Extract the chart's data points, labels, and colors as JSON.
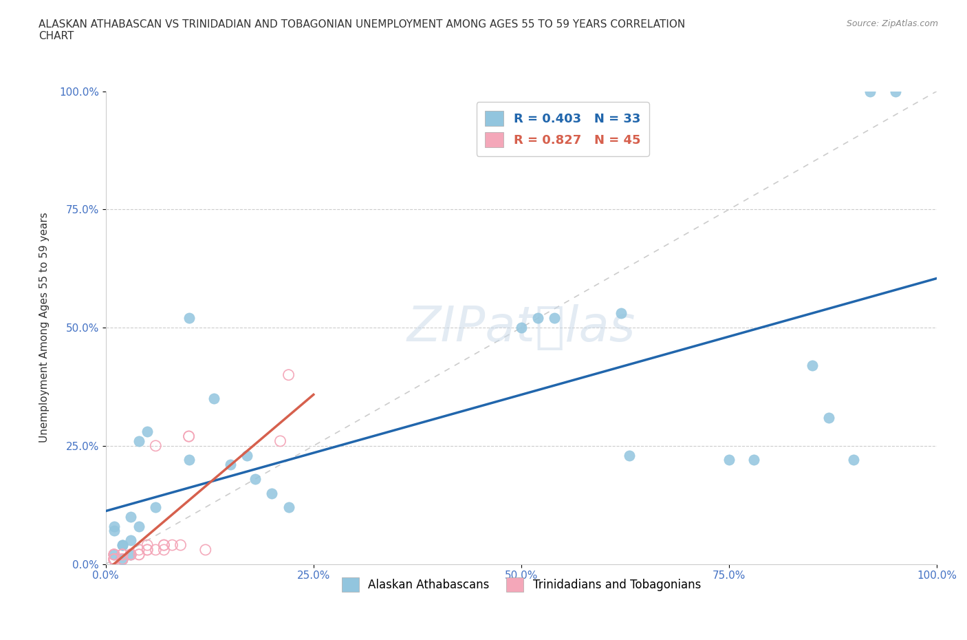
{
  "title": "ALASKAN ATHABASCAN VS TRINIDADIAN AND TOBAGONIAN UNEMPLOYMENT AMONG AGES 55 TO 59 YEARS CORRELATION\nCHART",
  "source": "Source: ZipAtlas.com",
  "ylabel": "Unemployment Among Ages 55 to 59 years",
  "xlim": [
    0,
    1.0
  ],
  "ylim": [
    0,
    1.0
  ],
  "xticks": [
    0.0,
    0.25,
    0.5,
    0.75,
    1.0
  ],
  "yticks": [
    0.0,
    0.25,
    0.5,
    0.75,
    1.0
  ],
  "xticklabels": [
    "0.0%",
    "25.0%",
    "50.0%",
    "75.0%",
    "100.0%"
  ],
  "yticklabels": [
    "0.0%",
    "25.0%",
    "50.0%",
    "75.0%",
    "100.0%"
  ],
  "blue_color": "#92C5DE",
  "pink_color": "#F4A7B9",
  "blue_line_color": "#2166AC",
  "pink_line_color": "#D6604D",
  "diag_color": "#CCCCCC",
  "legend_blue_R": "0.403",
  "legend_blue_N": "33",
  "legend_pink_R": "0.827",
  "legend_pink_N": "45",
  "blue_scatter_x": [
    0.05,
    0.1,
    0.03,
    0.03,
    0.01,
    0.01,
    0.02,
    0.02,
    0.01,
    0.04,
    0.06,
    0.04,
    0.13,
    0.1,
    0.15,
    0.17,
    0.18,
    0.2,
    0.22,
    0.5,
    0.52,
    0.54,
    0.62,
    0.63,
    0.75,
    0.78,
    0.85,
    0.87,
    0.9,
    0.92,
    0.02,
    0.03,
    0.95
  ],
  "blue_scatter_y": [
    0.28,
    0.52,
    0.1,
    0.05,
    0.02,
    0.07,
    0.04,
    0.01,
    0.08,
    0.08,
    0.12,
    0.26,
    0.35,
    0.22,
    0.21,
    0.23,
    0.18,
    0.15,
    0.12,
    0.5,
    0.52,
    0.52,
    0.53,
    0.23,
    0.22,
    0.22,
    0.42,
    0.31,
    0.22,
    1.0,
    0.04,
    0.02,
    1.0
  ],
  "pink_scatter_x": [
    0.01,
    0.01,
    0.01,
    0.01,
    0.02,
    0.02,
    0.02,
    0.02,
    0.01,
    0.01,
    0.01,
    0.02,
    0.01,
    0.01,
    0.01,
    0.02,
    0.01,
    0.01,
    0.01,
    0.01,
    0.01,
    0.02,
    0.02,
    0.03,
    0.03,
    0.03,
    0.03,
    0.04,
    0.04,
    0.04,
    0.05,
    0.05,
    0.05,
    0.06,
    0.06,
    0.07,
    0.07,
    0.07,
    0.08,
    0.09,
    0.1,
    0.1,
    0.12,
    0.21,
    0.22
  ],
  "pink_scatter_y": [
    0.01,
    0.02,
    0.01,
    0.01,
    0.01,
    0.01,
    0.02,
    0.01,
    0.02,
    0.01,
    0.02,
    0.01,
    0.01,
    0.01,
    0.01,
    0.02,
    0.01,
    0.01,
    0.01,
    0.01,
    0.02,
    0.01,
    0.02,
    0.02,
    0.02,
    0.02,
    0.02,
    0.02,
    0.02,
    0.03,
    0.03,
    0.03,
    0.04,
    0.03,
    0.25,
    0.03,
    0.04,
    0.04,
    0.04,
    0.04,
    0.27,
    0.27,
    0.03,
    0.26,
    0.4
  ]
}
